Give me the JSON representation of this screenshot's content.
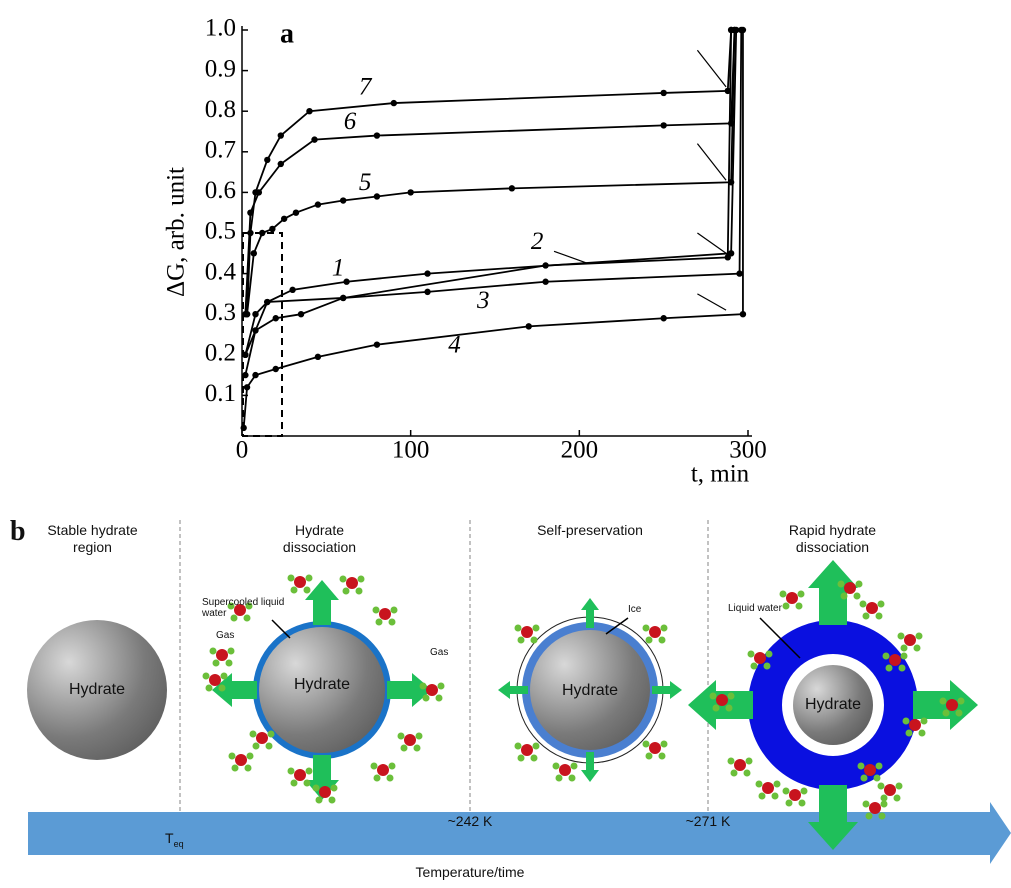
{
  "chart_data": {
    "type": "line",
    "panel_label": "a",
    "y_label": "ΔG, arb. unit",
    "x_label": "t, min",
    "xlim": [
      0,
      300
    ],
    "xticks": [
      0,
      100,
      200,
      300
    ],
    "ylim": [
      0,
      1
    ],
    "yticks": [
      0.1,
      0.2,
      0.3,
      0.4,
      0.5,
      0.6,
      0.7,
      0.8,
      0.9,
      {
        "value": 1,
        "label": "1.0"
      }
    ],
    "series": [
      {
        "name": "1",
        "color": "#000000",
        "x": [
          2,
          8,
          15,
          30,
          62,
          110,
          290,
          293
        ],
        "values": [
          0.2,
          0.3,
          0.33,
          0.36,
          0.38,
          0.4,
          0.45,
          1
        ]
      },
      {
        "name": "2",
        "color": "#000000",
        "x": [
          2,
          15,
          60,
          180,
          288,
          290
        ],
        "values": [
          0.2,
          0.33,
          0.34,
          0.42,
          0.44,
          1
        ]
      },
      {
        "name": "3",
        "color": "#000000",
        "x": [
          2,
          8,
          20,
          35,
          60,
          110,
          180,
          295,
          296
        ],
        "values": [
          0.15,
          0.26,
          0.29,
          0.3,
          0.34,
          0.355,
          0.38,
          0.4,
          1
        ]
      },
      {
        "name": "4",
        "color": "#000000",
        "x": [
          1,
          3,
          8,
          20,
          45,
          80,
          170,
          250,
          297,
          297
        ],
        "values": [
          0.02,
          0.12,
          0.15,
          0.165,
          0.195,
          0.225,
          0.27,
          0.29,
          0.3,
          1
        ]
      },
      {
        "name": "5",
        "color": "#000000",
        "x": [
          3,
          7,
          12,
          18,
          25,
          32,
          45,
          60,
          80,
          100,
          160,
          290,
          292
        ],
        "values": [
          0.3,
          0.45,
          0.5,
          0.51,
          0.535,
          0.55,
          0.57,
          0.58,
          0.59,
          0.6,
          0.61,
          0.625,
          1
        ]
      },
      {
        "name": "6",
        "color": "#000000",
        "x": [
          2,
          5,
          10,
          23,
          43,
          80,
          250,
          290,
          292
        ],
        "values": [
          0.3,
          0.55,
          0.6,
          0.67,
          0.73,
          0.74,
          0.765,
          0.77,
          1
        ]
      },
      {
        "name": "7",
        "color": "#000000",
        "x": [
          3,
          5,
          8,
          15,
          23,
          40,
          90,
          250,
          288,
          290
        ],
        "values": [
          0.3,
          0.5,
          0.6,
          0.68,
          0.74,
          0.8,
          0.82,
          0.845,
          0.85,
          1
        ]
      }
    ]
  },
  "diagram": {
    "panel_label": "b",
    "stages": [
      {
        "title": "Stable hydrate region",
        "core": "Hydrate"
      },
      {
        "title": "Hydrate dissociation",
        "core": "Hydrate",
        "notes": [
          "Supercooled liquid water",
          "Gas",
          "Gas"
        ]
      },
      {
        "title": "Self-preservation",
        "core": "Hydrate",
        "notes": [
          "Ice"
        ]
      },
      {
        "title": "Rapid hydrate dissociation",
        "core": "Hydrate",
        "notes": [
          "Liquid water"
        ]
      }
    ],
    "axis": {
      "markers": [
        {
          "label": "T",
          "subscript": "eq"
        },
        {
          "label": "~242 K"
        },
        {
          "label": "~271 K"
        }
      ],
      "title": "Temperature/time"
    }
  }
}
